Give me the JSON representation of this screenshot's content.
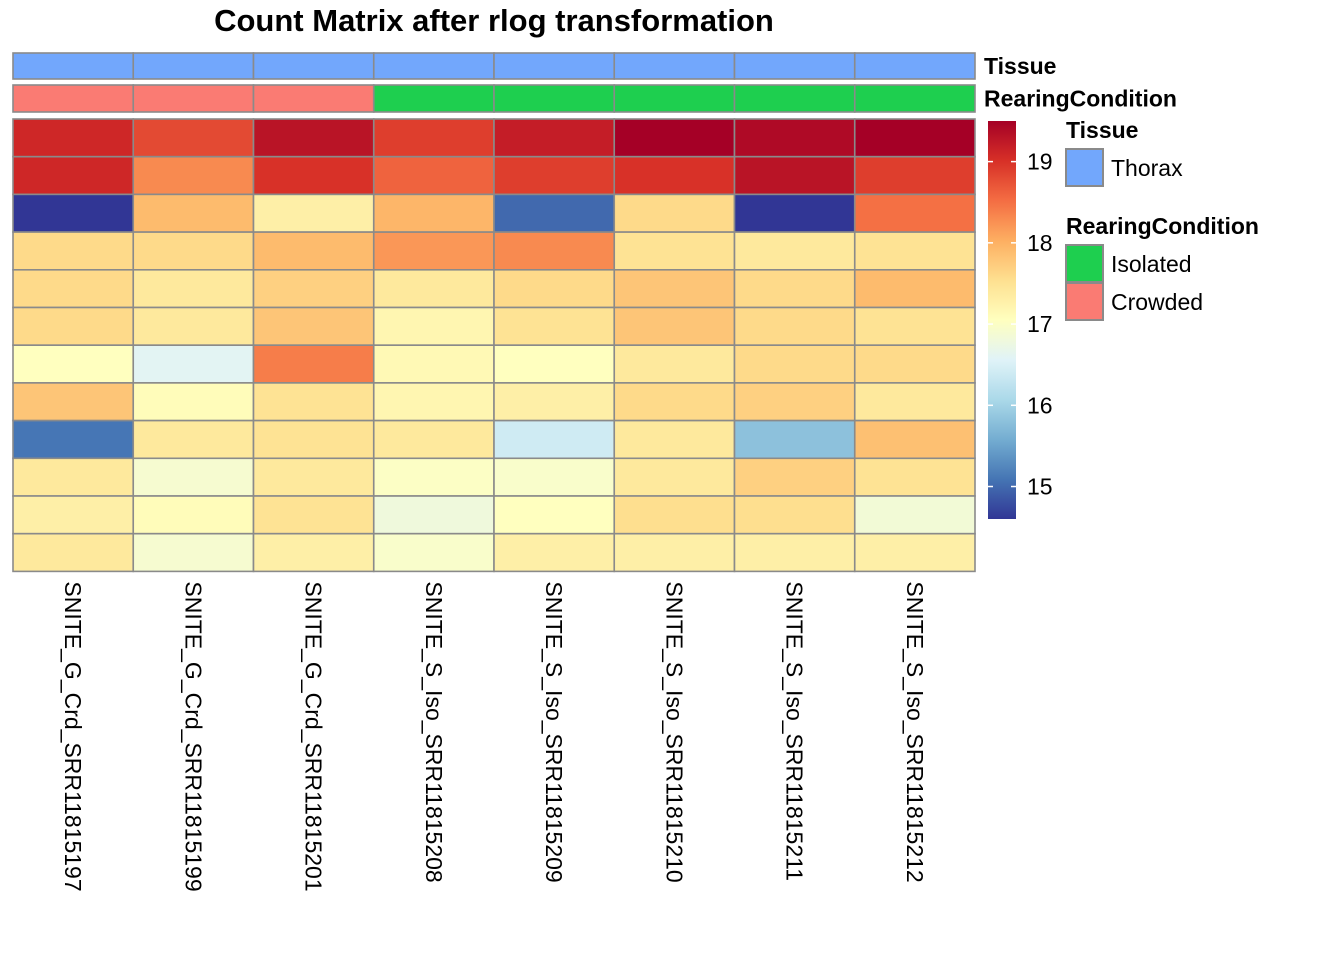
{
  "chart_data": {
    "type": "heatmap",
    "title": "Count Matrix after rlog transformation",
    "columns": [
      "SNITE_G_Crd_SRR11815197",
      "SNITE_G_Crd_SRR11815199",
      "SNITE_G_Crd_SRR11815201",
      "SNITE_S_Iso_SRR11815208",
      "SNITE_S_Iso_SRR11815209",
      "SNITE_S_Iso_SRR11815210",
      "SNITE_S_Iso_SRR11815211",
      "SNITE_S_Iso_SRR11815212"
    ],
    "values": [
      [
        19.1,
        18.8,
        19.3,
        18.9,
        19.2,
        19.5,
        19.4,
        19.5
      ],
      [
        19.1,
        18.3,
        19.0,
        18.6,
        18.9,
        19.0,
        19.3,
        18.9
      ],
      [
        14.6,
        17.9,
        17.3,
        17.95,
        15.0,
        17.6,
        14.6,
        18.5
      ],
      [
        17.6,
        17.6,
        17.9,
        18.2,
        18.3,
        17.5,
        17.4,
        17.5
      ],
      [
        17.6,
        17.4,
        17.7,
        17.4,
        17.6,
        17.8,
        17.6,
        17.9
      ],
      [
        17.6,
        17.4,
        17.8,
        17.2,
        17.5,
        17.8,
        17.6,
        17.5
      ],
      [
        17.05,
        16.6,
        18.4,
        17.15,
        17.05,
        17.4,
        17.6,
        17.6
      ],
      [
        17.8,
        17.1,
        17.5,
        17.2,
        17.3,
        17.6,
        17.7,
        17.4
      ],
      [
        15.1,
        17.4,
        17.5,
        17.4,
        16.4,
        17.4,
        15.8,
        17.85
      ],
      [
        17.4,
        16.9,
        17.4,
        17.0,
        16.95,
        17.4,
        17.7,
        17.5
      ],
      [
        17.3,
        17.1,
        17.5,
        16.8,
        17.05,
        17.55,
        17.55,
        16.85
      ],
      [
        17.4,
        16.9,
        17.3,
        16.95,
        17.3,
        17.3,
        17.3,
        17.3
      ]
    ],
    "color_scale": {
      "min": 14.6,
      "max": 19.5,
      "ticks": [
        15,
        16,
        17,
        18,
        19
      ],
      "colors": [
        "#313695",
        "#4575b4",
        "#74add1",
        "#abd9e9",
        "#e0f3f8",
        "#ffffbf",
        "#fee090",
        "#fdae61",
        "#f46d43",
        "#d73027",
        "#a50026"
      ]
    },
    "annotations": [
      {
        "name": "Tissue",
        "values": [
          "Thorax",
          "Thorax",
          "Thorax",
          "Thorax",
          "Thorax",
          "Thorax",
          "Thorax",
          "Thorax"
        ]
      },
      {
        "name": "RearingCondition",
        "values": [
          "Crowded",
          "Crowded",
          "Crowded",
          "Isolated",
          "Isolated",
          "Isolated",
          "Isolated",
          "Isolated"
        ]
      }
    ],
    "legends": [
      {
        "title": "Tissue",
        "entries": [
          {
            "label": "Thorax",
            "color": "#72a7fc"
          }
        ]
      },
      {
        "title": "RearingCondition",
        "entries": [
          {
            "label": "Isolated",
            "color": "#1ecf4f"
          },
          {
            "label": "Crowded",
            "color": "#fa7b73"
          }
        ]
      }
    ]
  }
}
